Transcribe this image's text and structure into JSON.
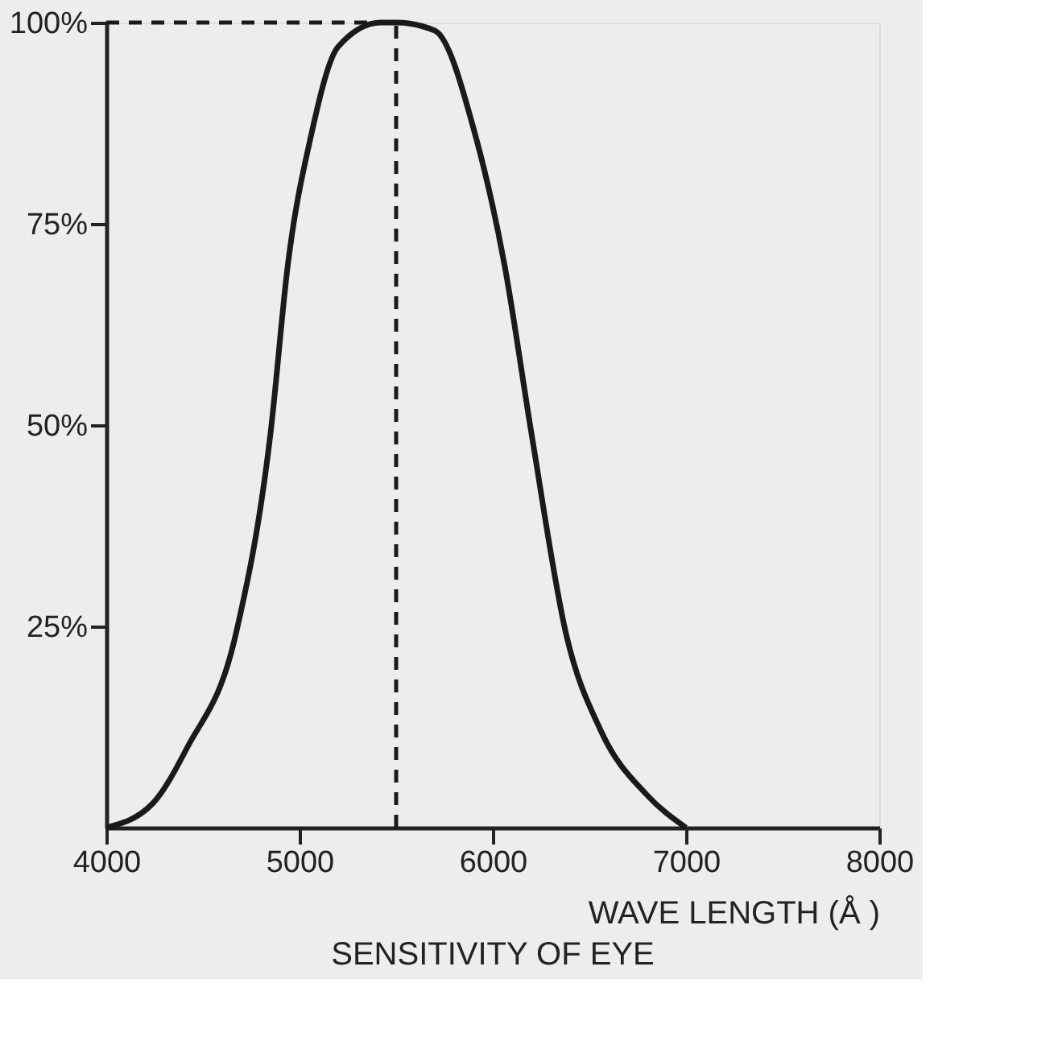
{
  "chart_data": {
    "type": "line",
    "title": "SENSITIVITY OF EYE",
    "xlabel": "WAVE LENGTH (Å )",
    "x": [
      4000,
      4240,
      4420,
      4670,
      4850,
      4940,
      5060,
      5200,
      5420,
      5500,
      5700,
      5910,
      6060,
      6200,
      6380,
      6560,
      6800,
      7000
    ],
    "series": [
      {
        "color": "#1a1a1a",
        "values": [
          0,
          3,
          10,
          24,
          49,
          70,
          86,
          97,
          100,
          100,
          99,
          86,
          70,
          49,
          24,
          12,
          4,
          0
        ]
      }
    ],
    "xlim": [
      4000,
      8000
    ],
    "xticks": [
      4000,
      5000,
      6000,
      7000,
      8000
    ],
    "ylim": [
      0,
      100
    ],
    "yticks": [
      {
        "value": 25,
        "label": "25%"
      },
      {
        "value": 50,
        "label": "50%"
      },
      {
        "value": 75,
        "label": "75%"
      },
      {
        "value": 100,
        "label": "100%"
      }
    ],
    "ref_lines": [
      {
        "axis": "x",
        "value": 5500,
        "line_style": "dashed",
        "color": "#1a1a1a"
      },
      {
        "axis": "y",
        "value": 100,
        "line_style": "dashed",
        "color": "#1a1a1a"
      }
    ],
    "grid": false,
    "marker": "none",
    "line_style": "solid"
  }
}
